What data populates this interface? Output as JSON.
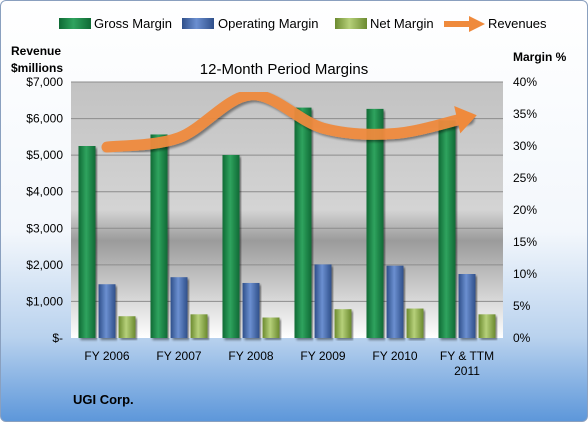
{
  "chart_data": {
    "type": "bar",
    "title": "12-Month Period Margins",
    "company": "UGI Corp.",
    "categories": [
      "FY 2006",
      "FY 2007",
      "FY 2008",
      "FY 2009",
      "FY 2010",
      "FY & TTM 2011"
    ],
    "left_axis": {
      "label_line1": "Revenue",
      "label_line2": "$millions",
      "range": [
        0,
        7000
      ],
      "ticks": [
        "$-",
        "$1,000",
        "$2,000",
        "$3,000",
        "$4,000",
        "$5,000",
        "$6,000",
        "$7,000"
      ]
    },
    "right_axis": {
      "label": "Margin %",
      "range": [
        0,
        40
      ],
      "ticks": [
        "0%",
        "5%",
        "10%",
        "15%",
        "20%",
        "25%",
        "30%",
        "35%",
        "40%"
      ]
    },
    "legend": {
      "placement": "top",
      "items": [
        {
          "name": "Gross Margin",
          "type": "bar",
          "color": "#1f8a4c"
        },
        {
          "name": "Operating Margin",
          "type": "bar",
          "color": "#4a6fb5"
        },
        {
          "name": "Net Margin",
          "type": "bar",
          "color": "#8fb04d"
        },
        {
          "name": "Revenues",
          "type": "arrow",
          "color": "#ef8a3c"
        }
      ]
    },
    "series": [
      {
        "name": "Gross Margin",
        "axis": "right",
        "color": "#1f8a4c",
        "values": [
          30.0,
          31.8,
          28.6,
          36.0,
          35.8,
          34.0
        ]
      },
      {
        "name": "Operating Margin",
        "axis": "right",
        "color": "#4a6fb5",
        "values": [
          8.4,
          9.5,
          8.6,
          11.5,
          11.3,
          10.0
        ]
      },
      {
        "name": "Net Margin",
        "axis": "right",
        "color": "#8fb04d",
        "values": [
          3.4,
          3.7,
          3.2,
          4.5,
          4.6,
          3.7
        ]
      },
      {
        "name": "Revenues",
        "axis": "left",
        "color": "#ef8a3c",
        "type": "line",
        "values": [
          5221,
          5477,
          6648,
          5738,
          5591,
          6030
        ]
      }
    ],
    "grid": true
  }
}
